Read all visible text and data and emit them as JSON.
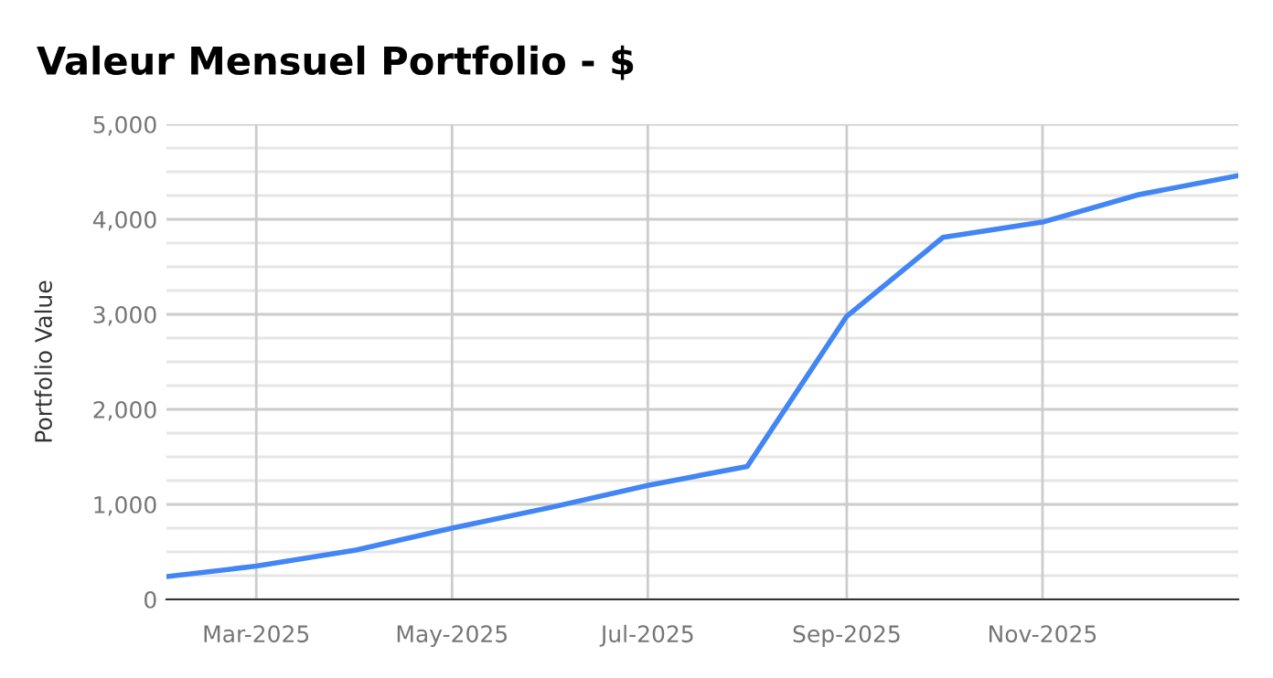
{
  "chart_data": {
    "type": "line",
    "title": "Valeur Mensuel Portfolio - $",
    "ylabel": "Portfolio Value",
    "x": [
      "2025-02",
      "2025-03",
      "2025-04",
      "2025-05",
      "2025-06",
      "2025-07",
      "2025-08",
      "2025-09",
      "2025-10",
      "2025-11",
      "2025-12",
      "2026-01"
    ],
    "series": [
      {
        "color": "#4285f4",
        "values": [
          240,
          350,
          520,
          750,
          970,
          1200,
          1400,
          2980,
          3810,
          3970,
          4260,
          4460
        ]
      }
    ],
    "xlim": [
      "2025-02",
      "2026-01"
    ],
    "xticks": [
      {
        "value": "2025-03",
        "label": "Mar-2025"
      },
      {
        "value": "2025-05",
        "label": "May-2025"
      },
      {
        "value": "2025-07",
        "label": "Jul-2025"
      },
      {
        "value": "2025-09",
        "label": "Sep-2025"
      },
      {
        "value": "2025-11",
        "label": "Nov-2025"
      }
    ],
    "ylim": [
      0,
      5000
    ],
    "yticks": [
      {
        "value": 0,
        "label": "0"
      },
      {
        "value": 250,
        "label": null
      },
      {
        "value": 500,
        "label": null
      },
      {
        "value": 750,
        "label": null
      },
      {
        "value": 1000,
        "label": "1,000"
      },
      {
        "value": 1250,
        "label": null
      },
      {
        "value": 1500,
        "label": null
      },
      {
        "value": 1750,
        "label": null
      },
      {
        "value": 2000,
        "label": "2,000"
      },
      {
        "value": 2250,
        "label": null
      },
      {
        "value": 2500,
        "label": null
      },
      {
        "value": 2750,
        "label": null
      },
      {
        "value": 3000,
        "label": "3,000"
      },
      {
        "value": 3250,
        "label": null
      },
      {
        "value": 3500,
        "label": null
      },
      {
        "value": 3750,
        "label": null
      },
      {
        "value": 4000,
        "label": "4,000"
      },
      {
        "value": 4250,
        "label": null
      },
      {
        "value": 4500,
        "label": null
      },
      {
        "value": 4750,
        "label": null
      },
      {
        "value": 5000,
        "label": "5,000"
      }
    ],
    "grid": true,
    "legend": false,
    "marker": "none",
    "line_style": "solid"
  }
}
